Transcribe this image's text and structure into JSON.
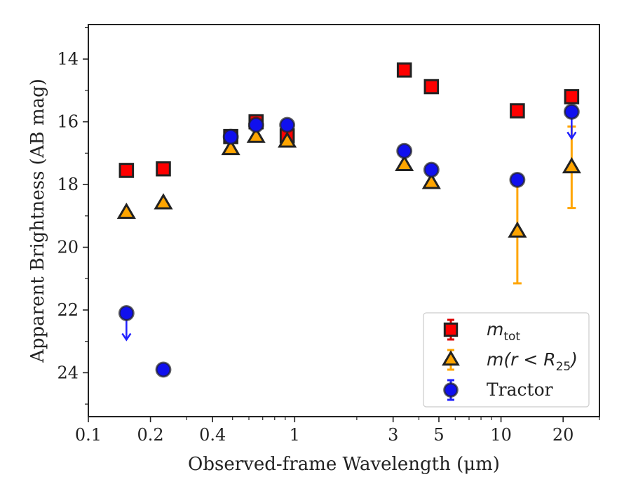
{
  "chart_data": {
    "type": "scatter",
    "xlabel": "Observed-frame Wavelength (μm)",
    "ylabel": "Apparent Brightness (AB mag)",
    "xscale": "log",
    "xlim": [
      0.1,
      30
    ],
    "ylim": [
      25.4,
      12.9
    ],
    "y_inverted": true,
    "x_ticks": [
      {
        "value": 0.1,
        "label": "0.1"
      },
      {
        "value": 0.2,
        "label": "0.2"
      },
      {
        "value": 0.4,
        "label": "0.4"
      },
      {
        "value": 1,
        "label": "1"
      },
      {
        "value": 3,
        "label": "3"
      },
      {
        "value": 5,
        "label": "5"
      },
      {
        "value": 10,
        "label": "10"
      },
      {
        "value": 20,
        "label": "20"
      }
    ],
    "y_ticks": [
      {
        "value": 14,
        "label": "14"
      },
      {
        "value": 16,
        "label": "16"
      },
      {
        "value": 18,
        "label": "18"
      },
      {
        "value": 20,
        "label": "20"
      },
      {
        "value": 22,
        "label": "22"
      },
      {
        "value": 24,
        "label": "24"
      }
    ],
    "grid": false,
    "legend_position": "lower-right",
    "series": [
      {
        "name": "m_tot",
        "label_main": "m",
        "label_sub": "tot",
        "marker": "square",
        "color": "#ff0000",
        "errcolor": "#dd0000",
        "points": [
          {
            "x": 0.153,
            "y": 17.55
          },
          {
            "x": 0.231,
            "y": 17.5
          },
          {
            "x": 0.49,
            "y": 16.47
          },
          {
            "x": 0.65,
            "y": 16.0
          },
          {
            "x": 0.92,
            "y": 16.45
          },
          {
            "x": 3.4,
            "y": 14.35
          },
          {
            "x": 4.6,
            "y": 14.88
          },
          {
            "x": 12.0,
            "y": 15.65
          },
          {
            "x": 22.0,
            "y": 15.2
          }
        ]
      },
      {
        "name": "m(r < R_25)",
        "label_main": "m(r < R",
        "label_sub": "25",
        "label_end": ")",
        "marker": "triangle",
        "color": "#ffa500",
        "errcolor": "#ffa500",
        "points": [
          {
            "x": 0.153,
            "y": 18.9
          },
          {
            "x": 0.231,
            "y": 18.6
          },
          {
            "x": 0.49,
            "y": 16.87
          },
          {
            "x": 0.65,
            "y": 16.48
          },
          {
            "x": 0.92,
            "y": 16.63
          },
          {
            "x": 3.4,
            "y": 17.38
          },
          {
            "x": 4.6,
            "y": 17.95
          },
          {
            "x": 12.0,
            "y": 19.5,
            "err": 1.65
          },
          {
            "x": 22.0,
            "y": 17.45,
            "err": 1.3
          }
        ]
      },
      {
        "name": "Tractor",
        "label_main": "Tractor",
        "marker": "circle",
        "color": "#1010ee",
        "errcolor": "#2020ff",
        "points": [
          {
            "x": 0.153,
            "y": 22.1,
            "upper_limit": true
          },
          {
            "x": 0.231,
            "y": 23.9
          },
          {
            "x": 0.49,
            "y": 16.48
          },
          {
            "x": 0.65,
            "y": 16.1
          },
          {
            "x": 0.92,
            "y": 16.1
          },
          {
            "x": 3.4,
            "y": 16.93
          },
          {
            "x": 4.6,
            "y": 17.53
          },
          {
            "x": 12.0,
            "y": 17.85
          },
          {
            "x": 22.0,
            "y": 15.68,
            "upper_limit": true
          }
        ]
      }
    ]
  }
}
